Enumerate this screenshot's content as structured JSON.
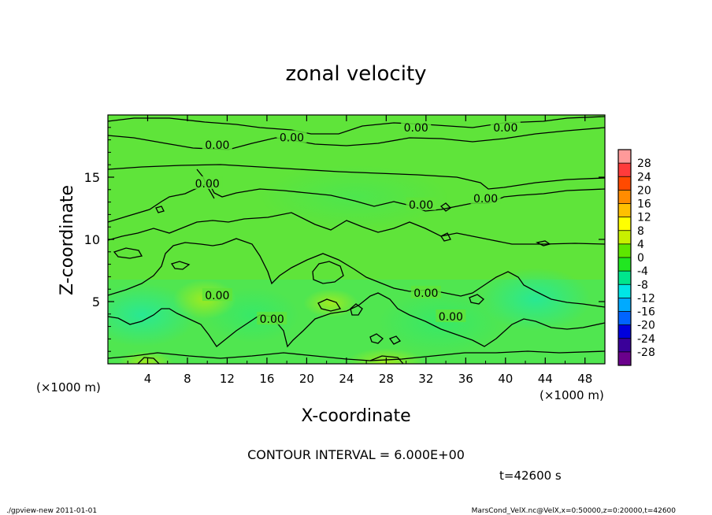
{
  "chart_data": {
    "type": "heatmap",
    "title": "zonal velocity",
    "xlabel": "X-coordinate",
    "ylabel": "Z-coordinate",
    "x_unit": "(×1000 m)",
    "y_unit": "(×1000 m)",
    "xlim": [
      0,
      50
    ],
    "ylim": [
      0,
      20
    ],
    "x_ticks": [
      4,
      8,
      12,
      16,
      20,
      24,
      28,
      32,
      36,
      40,
      44,
      48
    ],
    "y_ticks": [
      5,
      10,
      15
    ],
    "contour_interval_text": "CONTOUR INTERVAL = 6.000E+00",
    "contour_labels": [
      {
        "text": "0.00",
        "x": 31.0,
        "y": 19.0
      },
      {
        "text": "0.00",
        "x": 40.0,
        "y": 19.0
      },
      {
        "text": "0.00",
        "x": 18.5,
        "y": 18.2
      },
      {
        "text": "0.00",
        "x": 11.0,
        "y": 17.6
      },
      {
        "text": "0.00",
        "x": 10.0,
        "y": 14.5
      },
      {
        "text": "0.00",
        "x": 31.5,
        "y": 12.8
      },
      {
        "text": "0.00",
        "x": 38.0,
        "y": 13.3
      },
      {
        "text": "0.00",
        "x": 11.0,
        "y": 5.5
      },
      {
        "text": "0.00",
        "x": 32.0,
        "y": 5.7
      },
      {
        "text": "0.00",
        "x": 34.5,
        "y": 3.8
      },
      {
        "text": "0.00",
        "x": 16.5,
        "y": 3.6
      }
    ],
    "colorbar": {
      "levels": [
        28,
        24,
        20,
        16,
        12,
        8,
        4,
        0,
        -4,
        -8,
        -12,
        -16,
        -20,
        -24,
        -28
      ],
      "colors": [
        "#ff9a9a",
        "#ff3b3b",
        "#ff4a00",
        "#ff8c00",
        "#ffc000",
        "#ffff00",
        "#c8f000",
        "#5ee600",
        "#21e621",
        "#00e68c",
        "#00e6e6",
        "#00aaff",
        "#0064ff",
        "#0000dd",
        "#3a0099",
        "#6a008c"
      ]
    },
    "time_label": "t=42600 s",
    "footer_left": "./gpview-new   2011-01-01",
    "footer_right": "MarsCond_VelX.nc@VelX,x=0:50000,z=0:20000,t=42600"
  }
}
